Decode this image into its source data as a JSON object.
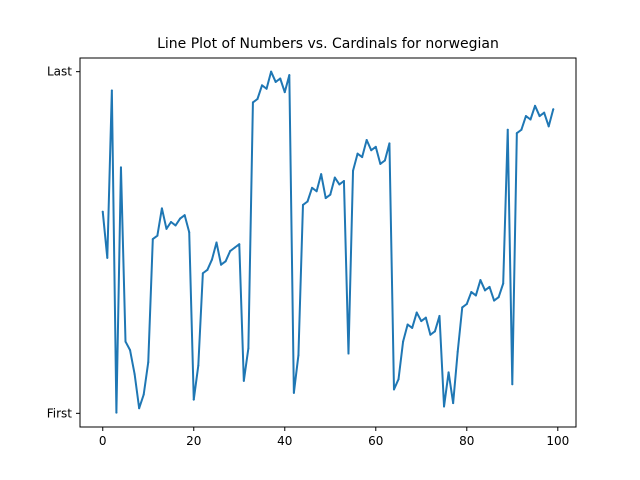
{
  "chart_data": {
    "type": "line",
    "title": "Line Plot of Numbers vs. Cardinals for norwegian",
    "xlabel": "",
    "ylabel": "",
    "xlim": [
      -5,
      104
    ],
    "ylim": [
      -0.04,
      1.04
    ],
    "x_ticks": [
      0,
      20,
      40,
      60,
      80,
      100
    ],
    "y_ticks": [
      {
        "value": 0,
        "label": "First"
      },
      {
        "value": 1,
        "label": "Last"
      }
    ],
    "grid": false,
    "line_color": "#1f77b4",
    "series": [
      {
        "x": [
          0,
          1,
          2,
          3,
          4,
          5,
          6,
          7,
          8,
          9,
          10,
          11,
          12,
          13,
          14,
          15,
          16,
          17,
          18,
          19,
          20,
          21,
          22,
          23,
          24,
          25,
          26,
          27,
          28,
          29,
          30,
          31,
          32,
          33,
          34,
          35,
          36,
          37,
          38,
          39,
          40,
          41,
          42,
          43,
          44,
          45,
          46,
          47,
          48,
          49,
          50,
          51,
          52,
          53,
          54,
          55,
          56,
          57,
          58,
          59,
          60,
          61,
          62,
          63,
          64,
          65,
          66,
          67,
          68,
          69,
          70,
          71,
          72,
          73,
          74,
          75,
          76,
          77,
          78,
          79,
          80,
          81,
          82,
          83,
          84,
          85,
          86,
          87,
          88,
          89,
          90,
          91,
          92,
          93,
          94,
          95,
          96,
          97,
          98,
          99
        ],
        "y": [
          0.59,
          0.455,
          0.945,
          0.002,
          0.72,
          0.21,
          0.185,
          0.115,
          0.015,
          0.055,
          0.15,
          0.51,
          0.52,
          0.6,
          0.54,
          0.56,
          0.55,
          0.57,
          0.58,
          0.53,
          0.04,
          0.14,
          0.41,
          0.42,
          0.45,
          0.5,
          0.435,
          0.445,
          0.475,
          0.485,
          0.495,
          0.095,
          0.19,
          0.91,
          0.92,
          0.96,
          0.95,
          1.0,
          0.97,
          0.98,
          0.94,
          0.99,
          0.06,
          0.17,
          0.61,
          0.62,
          0.66,
          0.65,
          0.7,
          0.63,
          0.64,
          0.69,
          0.67,
          0.68,
          0.175,
          0.71,
          0.76,
          0.75,
          0.8,
          0.77,
          0.78,
          0.73,
          0.74,
          0.79,
          0.07,
          0.1,
          0.21,
          0.26,
          0.25,
          0.295,
          0.27,
          0.28,
          0.23,
          0.24,
          0.285,
          0.02,
          0.12,
          0.03,
          0.18,
          0.31,
          0.32,
          0.355,
          0.345,
          0.39,
          0.36,
          0.37,
          0.33,
          0.34,
          0.38,
          0.83,
          0.085,
          0.82,
          0.83,
          0.87,
          0.86,
          0.9,
          0.87,
          0.88,
          0.84,
          0.89
        ]
      }
    ]
  }
}
